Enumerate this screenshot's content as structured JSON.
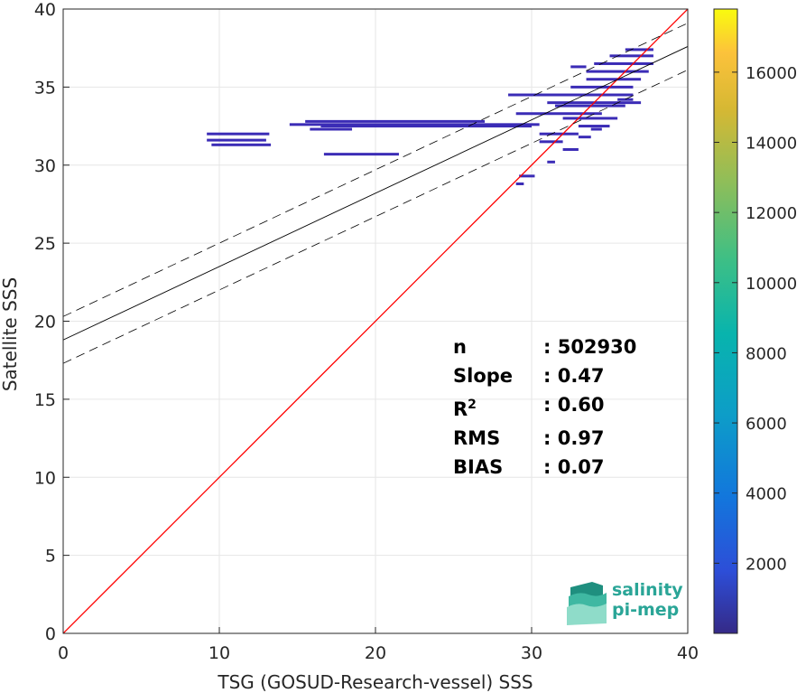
{
  "chart_data": {
    "type": "heatmap",
    "title": "",
    "xlabel": "TSG (GOSUD-Research-vessel) SSS",
    "ylabel": "Satellite SSS",
    "xlim": [
      0,
      40
    ],
    "ylim": [
      0,
      40
    ],
    "xticks": [
      "0",
      "10",
      "20",
      "30",
      "40"
    ],
    "yticks": [
      "0",
      "5",
      "10",
      "15",
      "20",
      "25",
      "30",
      "35",
      "40"
    ],
    "grid": true,
    "colorbar": {
      "range": [
        0,
        17800
      ],
      "ticks": [
        "2000",
        "4000",
        "6000",
        "8000",
        "10000",
        "12000",
        "14000",
        "16000"
      ],
      "colormap": "parula"
    },
    "reference_line": {
      "label": "1:1",
      "color": "#ff0000",
      "slope": 1,
      "intercept": 0
    },
    "regression_line": {
      "slope": 0.47,
      "intercept": 18.8,
      "color": "#000000"
    },
    "confidence_band_offset": 1.5,
    "density_segments": [
      {
        "x0": 9.2,
        "x1": 13.2,
        "y": 32.0
      },
      {
        "x0": 9.2,
        "x1": 13.0,
        "y": 31.6
      },
      {
        "x0": 9.5,
        "x1": 13.3,
        "y": 31.3
      },
      {
        "x0": 14.5,
        "x1": 30.5,
        "y": 32.6
      },
      {
        "x0": 15.5,
        "x1": 27.0,
        "y": 32.8
      },
      {
        "x0": 15.8,
        "x1": 18.5,
        "y": 32.3
      },
      {
        "x0": 16.5,
        "x1": 30.0,
        "y": 32.5
      },
      {
        "x0": 16.7,
        "x1": 21.5,
        "y": 30.7
      },
      {
        "x0": 28.5,
        "x1": 36.5,
        "y": 34.5
      },
      {
        "x0": 29.0,
        "x1": 34.5,
        "y": 33.3
      },
      {
        "x0": 30.5,
        "x1": 33.0,
        "y": 32.0
      },
      {
        "x0": 30.5,
        "x1": 32.0,
        "y": 31.5
      },
      {
        "x0": 31.0,
        "x1": 37.0,
        "y": 34.0
      },
      {
        "x0": 31.5,
        "x1": 36.0,
        "y": 33.8
      },
      {
        "x0": 32.0,
        "x1": 35.5,
        "y": 33.0
      },
      {
        "x0": 32.5,
        "x1": 36.5,
        "y": 35.0
      },
      {
        "x0": 33.5,
        "x1": 37.0,
        "y": 35.5
      },
      {
        "x0": 33.5,
        "x1": 37.5,
        "y": 36.0
      },
      {
        "x0": 34.0,
        "x1": 37.8,
        "y": 36.5
      },
      {
        "x0": 35.0,
        "x1": 37.8,
        "y": 37.0
      },
      {
        "x0": 36.0,
        "x1": 37.8,
        "y": 37.4
      },
      {
        "x0": 33.0,
        "x1": 35.0,
        "y": 32.5
      },
      {
        "x0": 35.5,
        "x1": 36.5,
        "y": 34.2
      },
      {
        "x0": 29.2,
        "x1": 30.2,
        "y": 29.3
      },
      {
        "x0": 29.0,
        "x1": 29.5,
        "y": 28.8
      },
      {
        "x0": 31.0,
        "x1": 31.5,
        "y": 30.2
      },
      {
        "x0": 32.0,
        "x1": 33.0,
        "y": 31.0
      },
      {
        "x0": 33.0,
        "x1": 33.8,
        "y": 31.8
      },
      {
        "x0": 32.5,
        "x1": 33.5,
        "y": 36.3
      },
      {
        "x0": 33.8,
        "x1": 34.5,
        "y": 32.3
      }
    ],
    "stats": [
      {
        "key": "n",
        "value": ": 502930"
      },
      {
        "key": "Slope",
        "value": ": 0.47"
      },
      {
        "key": "R",
        "sup": "2",
        "value": ": 0.60"
      },
      {
        "key": "RMS",
        "value": ": 0.97"
      },
      {
        "key": "BIAS",
        "value": ": 0.07"
      }
    ]
  },
  "logo": {
    "line1": "salinity",
    "line2": "pi-mep"
  }
}
